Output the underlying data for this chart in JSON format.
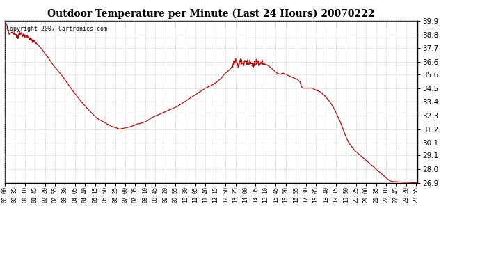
{
  "title": "Outdoor Temperature per Minute (Last 24 Hours) 20070222",
  "copyright_text": "Copyright 2007 Cartronics.com",
  "line_color": "#cc0000",
  "background_color": "#ffffff",
  "plot_bg_color": "#ffffff",
  "grid_color": "#bbbbbb",
  "ylim": [
    26.9,
    39.9
  ],
  "yticks": [
    26.9,
    28.0,
    29.1,
    30.1,
    31.2,
    32.3,
    33.4,
    34.5,
    35.6,
    36.6,
    37.7,
    38.8,
    39.9
  ],
  "xtick_labels": [
    "00:00",
    "00:35",
    "01:10",
    "01:45",
    "02:20",
    "02:55",
    "03:30",
    "04:05",
    "04:40",
    "05:15",
    "05:50",
    "06:25",
    "07:00",
    "07:35",
    "08:10",
    "08:45",
    "09:20",
    "09:55",
    "10:30",
    "11:05",
    "11:40",
    "12:15",
    "12:50",
    "13:25",
    "14:00",
    "14:35",
    "15:10",
    "15:45",
    "16:20",
    "16:55",
    "17:30",
    "18:05",
    "18:40",
    "19:15",
    "19:50",
    "20:25",
    "21:00",
    "21:35",
    "22:10",
    "22:45",
    "23:20",
    "23:55"
  ],
  "keypoints_minutes": {
    "0": 39.9,
    "8": 39.5,
    "15": 38.8,
    "25": 39.0,
    "35": 38.8,
    "45": 38.6,
    "55": 38.9,
    "65": 38.8,
    "75": 38.7,
    "85": 38.5,
    "100": 38.3,
    "115": 38.0,
    "130": 37.6,
    "150": 37.0,
    "170": 36.3,
    "200": 35.5,
    "230": 34.5,
    "260": 33.6,
    "290": 32.8,
    "320": 32.1,
    "350": 31.7,
    "375": 31.4,
    "390": 31.3,
    "400": 31.2,
    "410": 31.25,
    "420": 31.3,
    "430": 31.35,
    "440": 31.4,
    "450": 31.5,
    "460": 31.6,
    "470": 31.65,
    "480": 31.7,
    "490": 31.8,
    "500": 31.9,
    "510": 32.1,
    "520": 32.2,
    "530": 32.3,
    "540": 32.4,
    "560": 32.6,
    "580": 32.8,
    "600": 33.0,
    "620": 33.3,
    "640": 33.6,
    "660": 33.9,
    "680": 34.2,
    "700": 34.5,
    "720": 34.7,
    "740": 35.0,
    "755": 35.3,
    "765": 35.6,
    "775": 35.8,
    "785": 36.0,
    "795": 36.3,
    "800": 36.5,
    "805": 36.6,
    "810": 36.5,
    "815": 36.3,
    "820": 36.6,
    "825": 36.7,
    "830": 36.5,
    "835": 36.6,
    "840": 36.7,
    "845": 36.6,
    "850": 36.4,
    "855": 36.6,
    "860": 36.5,
    "865": 36.3,
    "870": 36.5,
    "875": 36.6,
    "880": 36.5,
    "885": 36.4,
    "890": 36.5,
    "895": 36.6,
    "900": 36.5,
    "910": 36.4,
    "920": 36.3,
    "930": 36.1,
    "940": 35.9,
    "950": 35.7,
    "960": 35.6,
    "970": 35.7,
    "980": 35.6,
    "990": 35.5,
    "1000": 35.4,
    "1010": 35.3,
    "1020": 35.2,
    "1030": 35.0,
    "1035": 34.6,
    "1040": 34.5,
    "1050": 34.5,
    "1060": 34.5,
    "1070": 34.5,
    "1080": 34.4,
    "1090": 34.3,
    "1100": 34.2,
    "1110": 34.0,
    "1120": 33.8,
    "1130": 33.5,
    "1140": 33.2,
    "1150": 32.8,
    "1160": 32.3,
    "1170": 31.8,
    "1180": 31.2,
    "1190": 30.6,
    "1200": 30.1,
    "1210": 29.8,
    "1220": 29.5,
    "1230": 29.3,
    "1240": 29.1,
    "1250": 28.9,
    "1260": 28.7,
    "1270": 28.5,
    "1280": 28.3,
    "1290": 28.1,
    "1300": 27.9,
    "1310": 27.7,
    "1320": 27.5,
    "1330": 27.3,
    "1340": 27.1,
    "1350": 27.0,
    "1380": 26.95,
    "1440": 26.9
  }
}
